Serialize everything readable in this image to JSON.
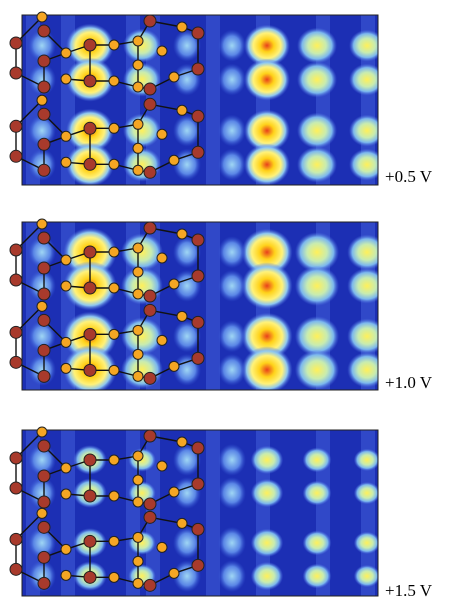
{
  "panels": [
    {
      "label": "+0.5 V"
    },
    {
      "label": "+1.0 V"
    },
    {
      "label": "+1.5 V"
    }
  ]
}
